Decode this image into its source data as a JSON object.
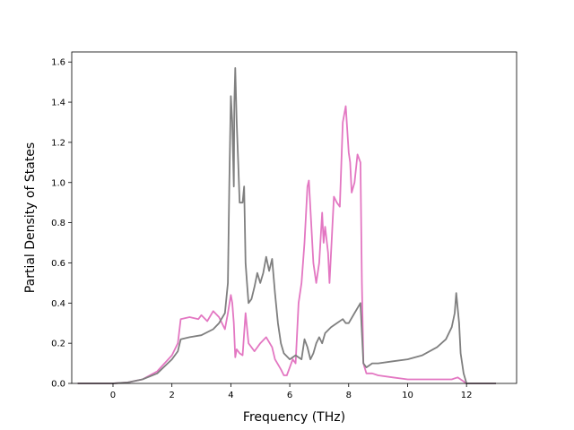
{
  "chart_data": {
    "type": "line",
    "title": "",
    "xlabel": "Frequency (THz)",
    "ylabel": "Partial Density of States",
    "xlim": [
      -1.4,
      13.7
    ],
    "ylim": [
      0,
      1.65
    ],
    "xticks": [
      0,
      2,
      4,
      6,
      8,
      10,
      12
    ],
    "yticks": [
      0.0,
      0.2,
      0.4,
      0.6,
      0.8,
      1.0,
      1.2,
      1.4,
      1.6
    ],
    "xtick_labels": [
      "0",
      "2",
      "4",
      "6",
      "8",
      "10",
      "12"
    ],
    "ytick_labels": [
      "0.0",
      "0.2",
      "0.4",
      "0.6",
      "0.8",
      "1.0",
      "1.2",
      "1.4",
      "1.6"
    ],
    "grid": false,
    "legend": "none",
    "series": [
      {
        "color": "#e377c2",
        "x": [
          -1.2,
          0.0,
          0.5,
          1.0,
          1.5,
          2.0,
          2.2,
          2.3,
          2.6,
          2.9,
          3.0,
          3.2,
          3.4,
          3.6,
          3.8,
          3.9,
          4.0,
          4.05,
          4.1,
          4.15,
          4.2,
          4.3,
          4.4,
          4.5,
          4.6,
          4.8,
          5.0,
          5.2,
          5.4,
          5.5,
          5.7,
          5.8,
          5.9,
          6.0,
          6.1,
          6.2,
          6.3,
          6.4,
          6.5,
          6.6,
          6.65,
          6.8,
          6.9,
          7.0,
          7.1,
          7.15,
          7.2,
          7.3,
          7.35,
          7.5,
          7.6,
          7.7,
          7.8,
          7.9,
          8.0,
          8.05,
          8.1,
          8.2,
          8.3,
          8.4,
          8.45,
          8.5,
          8.6,
          8.8,
          9.0,
          9.5,
          10.0,
          10.5,
          11.0,
          11.5,
          11.7,
          11.8,
          12.0,
          13.0
        ],
        "y": [
          0.0,
          0.0,
          0.005,
          0.02,
          0.06,
          0.14,
          0.2,
          0.32,
          0.33,
          0.32,
          0.34,
          0.31,
          0.36,
          0.33,
          0.27,
          0.35,
          0.44,
          0.4,
          0.3,
          0.13,
          0.17,
          0.15,
          0.14,
          0.35,
          0.2,
          0.16,
          0.2,
          0.23,
          0.18,
          0.12,
          0.07,
          0.04,
          0.04,
          0.08,
          0.12,
          0.1,
          0.4,
          0.5,
          0.7,
          0.98,
          1.01,
          0.6,
          0.5,
          0.6,
          0.85,
          0.7,
          0.78,
          0.65,
          0.5,
          0.93,
          0.9,
          0.88,
          1.3,
          1.38,
          1.15,
          1.1,
          0.95,
          1.0,
          1.14,
          1.1,
          0.5,
          0.1,
          0.05,
          0.05,
          0.04,
          0.03,
          0.02,
          0.02,
          0.02,
          0.02,
          0.03,
          0.02,
          0.0,
          0.0
        ]
      },
      {
        "color": "#7f7f7f",
        "x": [
          -1.2,
          0.0,
          0.5,
          1.0,
          1.5,
          2.0,
          2.2,
          2.3,
          2.6,
          3.0,
          3.4,
          3.6,
          3.8,
          3.9,
          3.95,
          4.0,
          4.05,
          4.1,
          4.12,
          4.15,
          4.2,
          4.25,
          4.3,
          4.4,
          4.45,
          4.5,
          4.55,
          4.6,
          4.7,
          4.8,
          4.9,
          5.0,
          5.1,
          5.2,
          5.3,
          5.4,
          5.5,
          5.6,
          5.7,
          5.8,
          6.0,
          6.2,
          6.4,
          6.5,
          6.6,
          6.7,
          6.8,
          6.9,
          7.0,
          7.1,
          7.2,
          7.4,
          7.6,
          7.8,
          7.9,
          8.0,
          8.2,
          8.4,
          8.5,
          8.6,
          8.8,
          9.0,
          9.5,
          10.0,
          10.5,
          11.0,
          11.3,
          11.5,
          11.6,
          11.65,
          11.75,
          11.8,
          11.9,
          12.0,
          13.0
        ],
        "y": [
          0.0,
          0.0,
          0.005,
          0.02,
          0.05,
          0.12,
          0.16,
          0.22,
          0.23,
          0.24,
          0.27,
          0.3,
          0.35,
          0.5,
          1.0,
          1.43,
          1.3,
          0.98,
          1.4,
          1.57,
          1.3,
          1.1,
          0.9,
          0.9,
          0.98,
          0.6,
          0.5,
          0.4,
          0.42,
          0.48,
          0.55,
          0.5,
          0.55,
          0.63,
          0.56,
          0.62,
          0.45,
          0.3,
          0.2,
          0.15,
          0.12,
          0.14,
          0.12,
          0.22,
          0.18,
          0.12,
          0.15,
          0.2,
          0.23,
          0.2,
          0.25,
          0.28,
          0.3,
          0.32,
          0.3,
          0.3,
          0.35,
          0.4,
          0.1,
          0.08,
          0.1,
          0.1,
          0.11,
          0.12,
          0.14,
          0.18,
          0.22,
          0.28,
          0.35,
          0.45,
          0.3,
          0.15,
          0.05,
          0.0,
          0.0
        ]
      }
    ]
  }
}
